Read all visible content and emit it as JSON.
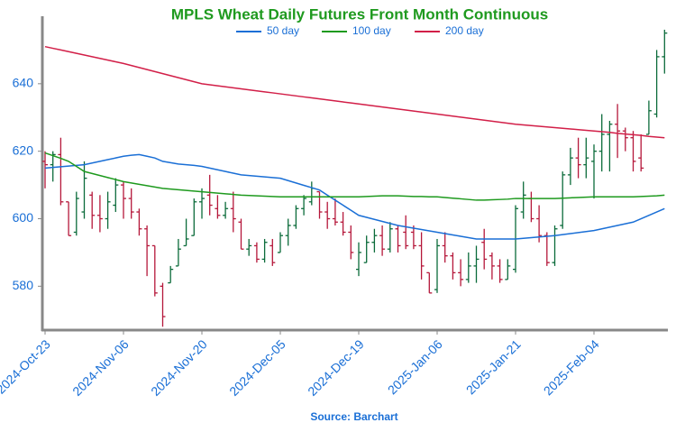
{
  "chart_data": {
    "type": "ohlc",
    "title": "MPLS Wheat Daily Futures Front Month Continuous",
    "source": "Source: Barchart",
    "categories": [
      "2024-Oct-23",
      null,
      null,
      null,
      null,
      null,
      null,
      null,
      null,
      null,
      "2024-Nov-06",
      null,
      null,
      null,
      null,
      null,
      null,
      null,
      null,
      null,
      "2024-Nov-20",
      null,
      null,
      null,
      null,
      null,
      null,
      null,
      null,
      null,
      "2024-Dec-05",
      null,
      null,
      null,
      null,
      null,
      null,
      null,
      null,
      null,
      "2024-Dec-19",
      null,
      null,
      null,
      null,
      null,
      null,
      null,
      null,
      null,
      "2025-Jan-06",
      null,
      null,
      null,
      null,
      null,
      null,
      null,
      null,
      null,
      "2025-Jan-21",
      null,
      null,
      null,
      null,
      null,
      null,
      null,
      null,
      null,
      "2025-Feb-04",
      null,
      null,
      null,
      null,
      null,
      null,
      null,
      null,
      null
    ],
    "open": [
      617,
      616,
      619,
      605,
      596,
      602,
      607,
      601,
      600,
      604,
      610,
      606,
      602,
      597,
      592,
      580,
      581,
      586,
      592,
      595,
      605,
      607,
      603,
      601,
      603,
      599,
      591,
      592,
      588,
      592,
      590,
      595,
      598,
      603,
      605,
      608,
      602,
      600,
      599,
      596,
      585,
      587,
      593,
      595,
      591,
      597,
      596,
      596,
      592,
      584,
      579,
      592,
      589,
      584,
      582,
      586,
      593,
      589,
      586,
      582,
      585,
      602,
      606,
      600,
      595,
      587,
      598,
      613,
      618,
      616,
      617,
      620,
      625,
      628,
      626,
      624,
      618,
      625,
      631,
      648
    ],
    "high": [
      620,
      620,
      624,
      605,
      608,
      617,
      608,
      607,
      608,
      612,
      611,
      609,
      603,
      598,
      592,
      581,
      586,
      594,
      600,
      606,
      609,
      613,
      607,
      605,
      608,
      600,
      594,
      593,
      594,
      594,
      596,
      600,
      604,
      607,
      611,
      608,
      605,
      606,
      602,
      598,
      593,
      595,
      597,
      598,
      599,
      598,
      601,
      598,
      596,
      584,
      594,
      596,
      590,
      588,
      590,
      592,
      597,
      590,
      588,
      588,
      604,
      611,
      608,
      604,
      596,
      598,
      614,
      621,
      624,
      624,
      622,
      631,
      629,
      634,
      627,
      626,
      625,
      635,
      650,
      656
    ],
    "low": [
      609,
      611,
      604,
      595,
      595,
      600,
      597,
      596,
      597,
      602,
      600,
      600,
      595,
      583,
      577,
      568,
      581,
      586,
      592,
      595,
      600,
      601,
      600,
      600,
      596,
      591,
      589,
      587,
      587,
      586,
      590,
      592,
      597,
      601,
      604,
      600,
      597,
      598,
      595,
      588,
      583,
      587,
      590,
      589,
      590,
      590,
      591,
      591,
      582,
      578,
      578,
      587,
      582,
      580,
      581,
      581,
      585,
      582,
      581,
      582,
      584,
      600,
      599,
      593,
      586,
      586,
      597,
      610,
      612,
      612,
      606,
      614,
      614,
      618,
      620,
      614,
      614,
      625,
      630,
      643
    ],
    "close": [
      616,
      619,
      605,
      595,
      606,
      612,
      601,
      600,
      605,
      610,
      606,
      602,
      597,
      592,
      578,
      571,
      585,
      591,
      594,
      605,
      606,
      604,
      601,
      603,
      600,
      591,
      592,
      588,
      593,
      587,
      595,
      598,
      603,
      606,
      609,
      602,
      600,
      599,
      596,
      590,
      590,
      593,
      595,
      591,
      597,
      592,
      592,
      592,
      586,
      578,
      592,
      589,
      584,
      582,
      586,
      588,
      588,
      586,
      582,
      586,
      603,
      607,
      600,
      595,
      587,
      597,
      613,
      618,
      616,
      618,
      620,
      625,
      628,
      626,
      624,
      617,
      615,
      632,
      648,
      655
    ],
    "up_color": "#0b6b3a",
    "down_color": "#b5173a",
    "series": [
      {
        "name": "50 day",
        "color": "#1a6fd6",
        "values": [
          615,
          615.2,
          615.4,
          615.6,
          615.8,
          616,
          616.5,
          617,
          617.5,
          618,
          618.5,
          618.8,
          619,
          618.5,
          618,
          617,
          616.6,
          616.2,
          616,
          615.8,
          615.5,
          615,
          614.5,
          614,
          613.5,
          613,
          612.8,
          612.6,
          612.4,
          612.2,
          612,
          611.3,
          610.6,
          609.9,
          609.2,
          608.5,
          607,
          605.5,
          604,
          602.5,
          601,
          600.4,
          599.8,
          599.2,
          598.6,
          598,
          597.6,
          597.2,
          596.8,
          596.4,
          596,
          595.6,
          595.2,
          594.8,
          594.4,
          594,
          594,
          594,
          594,
          594,
          594,
          594.2,
          594.4,
          594.6,
          594.8,
          595,
          595.3,
          595.6,
          595.9,
          596.2,
          596.5,
          597,
          597.5,
          598,
          598.5,
          599,
          600,
          601,
          602,
          603
        ]
      },
      {
        "name": "100 day",
        "color": "#1e9a1e",
        "values": [
          619.5,
          618.7,
          617.9,
          617,
          615.5,
          614,
          613.4,
          612.8,
          612.2,
          611.6,
          611,
          610.6,
          610.2,
          609.8,
          609.4,
          609,
          608.8,
          608.6,
          608.4,
          608.2,
          608,
          607.8,
          607.6,
          607.4,
          607.2,
          607,
          606.9,
          606.8,
          606.7,
          606.6,
          606.5,
          606.5,
          606.5,
          606.5,
          606.5,
          606.5,
          606.5,
          606.5,
          606.5,
          606.5,
          606.5,
          606.6,
          606.7,
          606.8,
          606.8,
          606.8,
          606.7,
          606.6,
          606.6,
          606.5,
          606.5,
          606.3,
          606.1,
          605.9,
          605.7,
          605.5,
          605.5,
          605.6,
          605.7,
          605.8,
          606,
          606,
          606,
          606,
          606,
          606,
          606.1,
          606.2,
          606.3,
          606.4,
          606.5,
          606.5,
          606.5,
          606.5,
          606.5,
          606.5,
          606.6,
          606.7,
          606.8,
          607
        ]
      },
      {
        "name": "200 day",
        "color": "#d21f48",
        "values": [
          651,
          650.5,
          650,
          649.5,
          649,
          648.5,
          648,
          647.5,
          647,
          646.5,
          646,
          645.4,
          644.8,
          644.2,
          643.6,
          643,
          642.4,
          641.8,
          641.2,
          640.6,
          640,
          639.7,
          639.4,
          639.1,
          638.8,
          638.5,
          638.2,
          637.9,
          637.6,
          637.3,
          637,
          636.7,
          636.4,
          636.1,
          635.8,
          635.5,
          635.2,
          634.9,
          634.6,
          634.3,
          634,
          633.7,
          633.4,
          633.1,
          632.8,
          632.5,
          632.2,
          631.9,
          631.6,
          631.3,
          631,
          630.7,
          630.4,
          630.1,
          629.8,
          629.5,
          629.2,
          628.9,
          628.6,
          628.3,
          628,
          627.8,
          627.6,
          627.4,
          627.2,
          627,
          626.8,
          626.6,
          626.4,
          626.2,
          626,
          625.8,
          625.6,
          625.3,
          625.1,
          624.9,
          624.7,
          624.4,
          624.2,
          624
        ]
      }
    ],
    "ylim": [
      567,
      660
    ],
    "yticks": [
      580,
      600,
      620,
      640
    ]
  }
}
